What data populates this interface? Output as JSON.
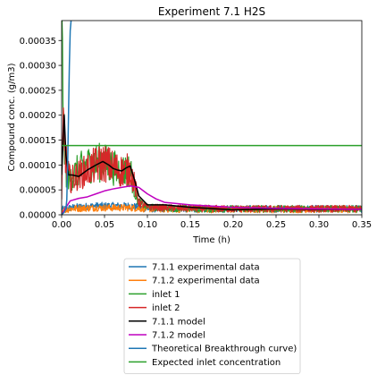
{
  "chart_data": {
    "type": "line",
    "title": "Experiment 7.1 H2S",
    "xlabel": "Time (h)",
    "ylabel": "Compound conc. (g/m3)",
    "xlim": [
      0,
      0.35
    ],
    "ylim": [
      0,
      0.00039
    ],
    "x_ticks": [
      0.0,
      0.05,
      0.1,
      0.15,
      0.2,
      0.25,
      0.3,
      0.35
    ],
    "x_tick_labels": [
      "0.00",
      "0.05",
      "0.10",
      "0.15",
      "0.20",
      "0.25",
      "0.30",
      "0.35"
    ],
    "y_ticks": [
      0,
      5e-05,
      0.0001,
      0.00015,
      0.0002,
      0.00025,
      0.0003,
      0.00035
    ],
    "y_tick_labels": [
      "0.00000",
      "0.00005",
      "0.00010",
      "0.00015",
      "0.00020",
      "0.00025",
      "0.00030",
      "0.00035"
    ],
    "grid": false,
    "legend_position": "below",
    "series": [
      {
        "name": "7.1.1 experimental data",
        "color": "#1f77b4",
        "style": "noisy",
        "x": [
          0.0,
          0.01,
          0.02,
          0.04,
          0.06,
          0.08,
          0.1,
          0.15,
          0.2,
          0.25,
          0.3,
          0.35
        ],
        "values": [
          1e-05,
          1.4e-05,
          1.6e-05,
          1.8e-05,
          1.8e-05,
          1.8e-05,
          1.2e-05,
          1.2e-05,
          1.2e-05,
          1.2e-05,
          1.2e-05,
          1.2e-05
        ]
      },
      {
        "name": "7.1.2 experimental data",
        "color": "#ff7f0e",
        "style": "noisy",
        "x": [
          0.0,
          0.01,
          0.02,
          0.04,
          0.06,
          0.08,
          0.1,
          0.15,
          0.2,
          0.25,
          0.3,
          0.35
        ],
        "values": [
          8e-06,
          1.2e-05,
          1.3e-05,
          1.4e-05,
          1.4e-05,
          1.4e-05,
          1.2e-05,
          1.1e-05,
          1.1e-05,
          1.1e-05,
          1.1e-05,
          1.1e-05
        ]
      },
      {
        "name": "inlet 1",
        "color": "#2ca02c",
        "style": "noisy",
        "x": [
          0.0,
          0.002,
          0.004,
          0.006,
          0.01,
          0.02,
          0.03,
          0.04,
          0.05,
          0.06,
          0.07,
          0.08,
          0.085,
          0.09,
          0.1,
          0.15,
          0.2,
          0.25,
          0.3,
          0.35
        ],
        "values": [
          0.00037,
          0.0002,
          0.00011,
          8e-05,
          7.5e-05,
          9e-05,
          0.0001,
          0.000105,
          0.000105,
          9.5e-05,
          8.8e-05,
          9e-05,
          5e-05,
          2.5e-05,
          1.5e-05,
          1.2e-05,
          1.2e-05,
          1.2e-05,
          1.2e-05,
          1.2e-05
        ]
      },
      {
        "name": "inlet 2",
        "color": "#d62728",
        "style": "noisy",
        "x": [
          0.0,
          0.002,
          0.004,
          0.006,
          0.01,
          0.02,
          0.03,
          0.04,
          0.05,
          0.06,
          0.07,
          0.08,
          0.085,
          0.09,
          0.1,
          0.15,
          0.2,
          0.25,
          0.3,
          0.35
        ],
        "values": [
          3e-05,
          0.00018,
          0.00014,
          9e-05,
          7e-05,
          8e-05,
          9e-05,
          0.0001,
          0.000105,
          9.5e-05,
          8.8e-05,
          9e-05,
          6e-05,
          2.5e-05,
          1.5e-05,
          1.3e-05,
          1.2e-05,
          1.2e-05,
          1.2e-05,
          1.2e-05
        ]
      },
      {
        "name": "7.1.1 model",
        "color": "#000000",
        "style": "smooth",
        "x": [
          0.0,
          0.003,
          0.005,
          0.008,
          0.012,
          0.02,
          0.03,
          0.04,
          0.048,
          0.055,
          0.06,
          0.065,
          0.07,
          0.075,
          0.08,
          0.085,
          0.09,
          0.1,
          0.12,
          0.15,
          0.2,
          0.25,
          0.3,
          0.35
        ],
        "values": [
          8e-05,
          0.0002,
          0.00012,
          8e-05,
          8e-05,
          7.7e-05,
          9e-05,
          0.0001,
          0.000107,
          0.0001,
          9.3e-05,
          9e-05,
          8.8e-05,
          9.4e-05,
          9.8e-05,
          7e-05,
          3.8e-05,
          2e-05,
          2e-05,
          1.5e-05,
          1e-05,
          1.2e-05,
          1.1e-05,
          1.1e-05
        ]
      },
      {
        "name": "7.1.2 model",
        "color": "#bf00bf",
        "style": "smooth",
        "x": [
          0.0,
          0.005,
          0.01,
          0.02,
          0.03,
          0.04,
          0.05,
          0.06,
          0.07,
          0.08,
          0.09,
          0.1,
          0.11,
          0.12,
          0.15,
          0.2,
          0.25,
          0.3,
          0.35
        ],
        "values": [
          0.0,
          1.5e-05,
          2.8e-05,
          3.3e-05,
          3.6e-05,
          4.2e-05,
          4.8e-05,
          5.2e-05,
          5.5e-05,
          5.8e-05,
          5.5e-05,
          4.2e-05,
          3.2e-05,
          2.5e-05,
          2e-05,
          1.5e-05,
          1.3e-05,
          1.2e-05,
          1.1e-05
        ]
      },
      {
        "name": "Theoretical Breakthrough curve)",
        "color": "#1f77b4",
        "style": "smooth",
        "x": [
          0.0,
          0.001,
          0.003,
          0.005,
          0.006,
          0.007,
          0.008,
          0.009,
          0.01,
          0.011
        ],
        "values": [
          0.0,
          2e-06,
          5e-06,
          1.2e-05,
          3e-05,
          0.0001,
          0.0002,
          0.0003,
          0.00037,
          0.00039
        ]
      },
      {
        "name": "Expected inlet concentration",
        "color": "#2ca02c",
        "style": "smooth",
        "x": [
          0.0,
          0.35
        ],
        "values": [
          0.000139,
          0.000139
        ]
      }
    ]
  }
}
